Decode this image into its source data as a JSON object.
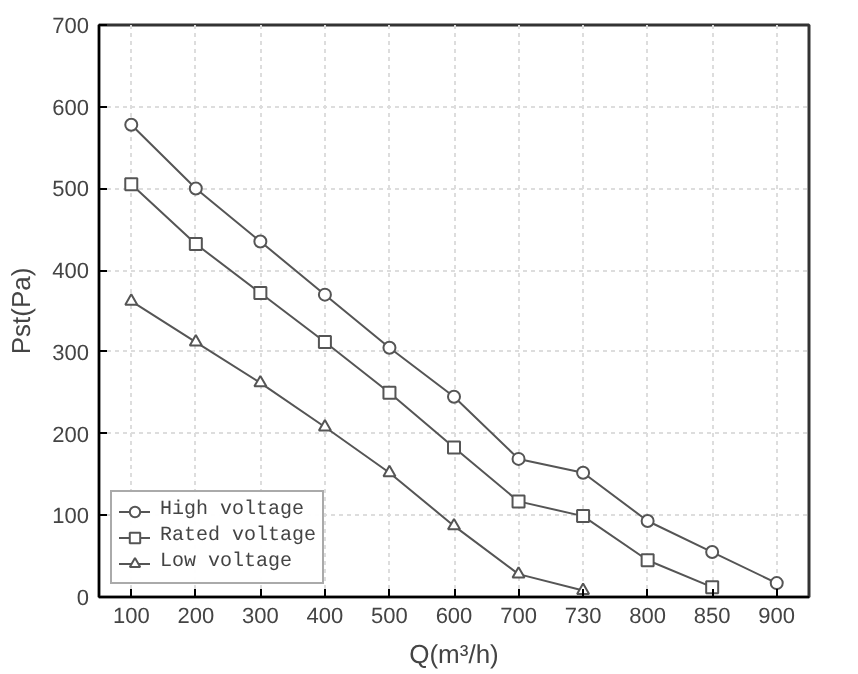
{
  "chart_data": {
    "type": "line",
    "xlabel": "Q(m³/h)",
    "ylabel": "Pst(Pa)",
    "categories": [
      "100",
      "200",
      "300",
      "400",
      "500",
      "600",
      "700",
      "730",
      "800",
      "850",
      "900"
    ],
    "ylim": [
      0,
      700
    ],
    "yticks": [
      0,
      100,
      200,
      300,
      400,
      500,
      600,
      700
    ],
    "grid": true,
    "legend": "bottom left",
    "series": [
      {
        "name": "High voltage",
        "color": "#555555",
        "marker": "circle",
        "values": [
          578,
          500,
          435,
          370,
          305,
          245,
          169,
          152,
          93,
          55,
          17
        ]
      },
      {
        "name": "Rated voltage",
        "color": "#555555",
        "marker": "square",
        "values": [
          505,
          432,
          372,
          312,
          250,
          183,
          117,
          99,
          45,
          12,
          null
        ]
      },
      {
        "name": "Low voltage",
        "color": "#555555",
        "marker": "triangle",
        "values": [
          362,
          312,
          262,
          208,
          152,
          87,
          28,
          8,
          null,
          null,
          null
        ]
      }
    ]
  }
}
